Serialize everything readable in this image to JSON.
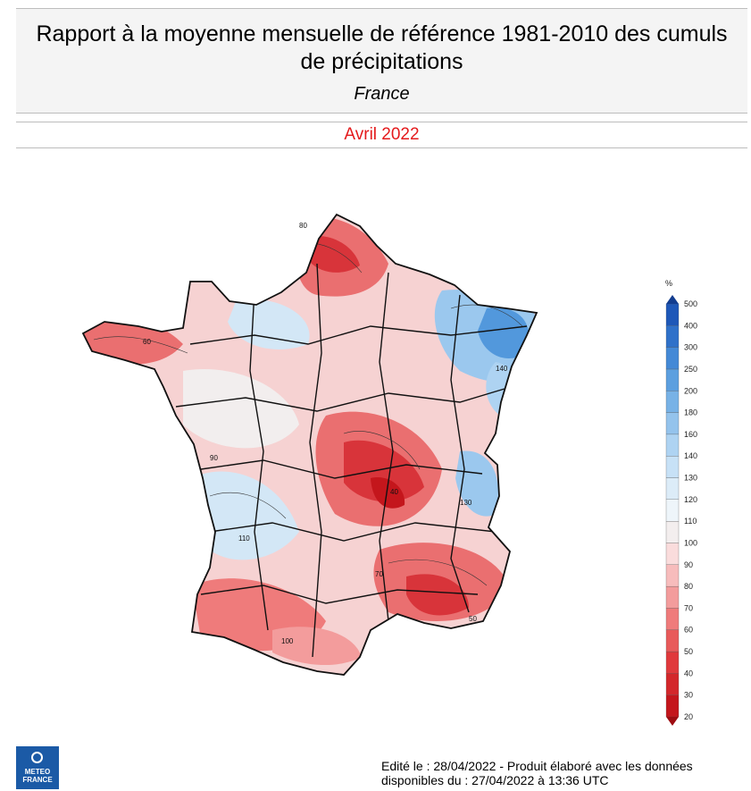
{
  "header": {
    "title_line1": "Rapport à la moyenne mensuelle de référence 1981-2010 des cumuls",
    "title_line2": "de précipitations",
    "region": "France"
  },
  "period": {
    "label": "Avril 2022",
    "color": "#e41a1c"
  },
  "legend": {
    "unit": "%",
    "ticks": [
      "20",
      "30",
      "40",
      "50",
      "60",
      "70",
      "80",
      "90",
      "100",
      "110",
      "120",
      "130",
      "140",
      "160",
      "180",
      "200",
      "250",
      "300",
      "400",
      "500"
    ],
    "colors": [
      "#c4161c",
      "#d3272b",
      "#e0393c",
      "#e85a5a",
      "#ef7b7b",
      "#f39c9c",
      "#f7bcbc",
      "#fadcdc",
      "#f3eeee",
      "#eef5fa",
      "#dcecf8",
      "#c7e1f6",
      "#aed3f2",
      "#94c3ec",
      "#78b2e6",
      "#5c9fdf",
      "#4489d6",
      "#2f71c9",
      "#1e58b8"
    ],
    "low_arrow_color": "#9e0d12",
    "high_arrow_color": "#123d8f"
  },
  "map": {
    "colors": {
      "red_dark": "#d8343a",
      "red": "#ea6f70",
      "red_light": "#f4adad",
      "pink": "#f9d8d8",
      "neutral": "#f2eeee",
      "blue_light": "#d3e7f6",
      "blue": "#9bc8ee",
      "blue_dark": "#5298dc",
      "outline": "#111111"
    },
    "contour_labels": [
      "60",
      "110",
      "80",
      "100",
      "130",
      "70",
      "90",
      "40",
      "140",
      "50"
    ]
  },
  "logo": {
    "line1": "METEO",
    "line2": "FRANCE"
  },
  "footer": {
    "line1": "Edité le : 28/04/2022 - Produit élaboré avec les données",
    "line2": "disponibles du : 27/04/2022 à 13:36 UTC"
  }
}
